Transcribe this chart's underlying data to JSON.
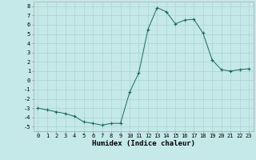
{
  "title": "",
  "xlabel": "Humidex (Indice chaleur)",
  "ylabel": "",
  "bg_color": "#c5e8e8",
  "grid_color": "#aad4d4",
  "line_color": "#1a6b5a",
  "marker_color": "#1a6b5a",
  "xlim": [
    -0.5,
    23.5
  ],
  "ylim": [
    -5.5,
    8.5
  ],
  "xticks": [
    0,
    1,
    2,
    3,
    4,
    5,
    6,
    7,
    8,
    9,
    10,
    11,
    12,
    13,
    14,
    15,
    16,
    17,
    18,
    19,
    20,
    21,
    22,
    23
  ],
  "yticks": [
    -5,
    -4,
    -3,
    -2,
    -1,
    0,
    1,
    2,
    3,
    4,
    5,
    6,
    7,
    8
  ],
  "x": [
    0,
    1,
    2,
    3,
    4,
    5,
    6,
    7,
    8,
    9,
    10,
    11,
    12,
    13,
    14,
    15,
    16,
    17,
    18,
    19,
    20,
    21,
    22,
    23
  ],
  "y": [
    -3.0,
    -3.2,
    -3.4,
    -3.6,
    -3.9,
    -4.5,
    -4.65,
    -4.85,
    -4.65,
    -4.65,
    -1.3,
    0.8,
    5.5,
    7.85,
    7.4,
    6.1,
    6.5,
    6.6,
    5.1,
    2.2,
    1.15,
    1.0,
    1.15,
    1.25
  ]
}
